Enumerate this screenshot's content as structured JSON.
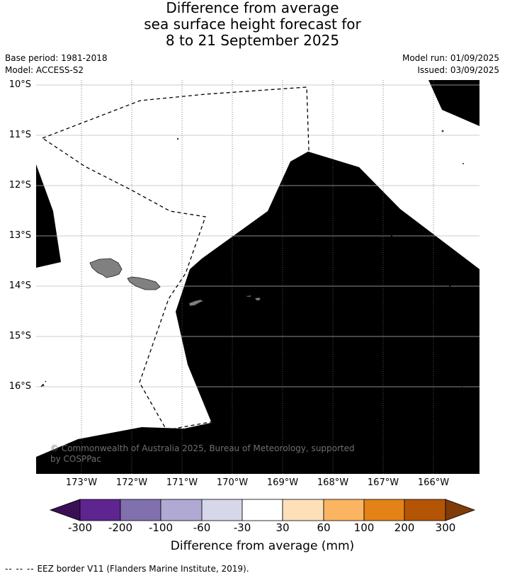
{
  "title": {
    "line1": "Difference from average",
    "line2": "sea surface height forecast for",
    "line3": "8 to 21 September 2025"
  },
  "meta": {
    "base_period": "Base period: 1981-2018",
    "model": "Model: ACCESS-S2",
    "model_run": "Model run: 01/09/2025",
    "issued": "Issued: 03/09/2025"
  },
  "map": {
    "lat_labels": [
      "10°S",
      "11°S",
      "12°S",
      "13°S",
      "14°S",
      "15°S",
      "16°S"
    ],
    "lon_labels": [
      "173°W",
      "172°W",
      "171°W",
      "170°W",
      "169°W",
      "168°W",
      "167°W",
      "166°W"
    ],
    "copyright": "© Commonwealth of Australia 2025, Bureau of Meteorology, supported by COSPPac",
    "colors": {
      "land": "#808080",
      "band_-100_-60": "#afa9d3",
      "band_-60_-30": "#d7d7ea",
      "eez_border": "#000000"
    }
  },
  "colorbar": {
    "title": "Difference from average (mm)",
    "ticks": [
      "-300",
      "-200",
      "-100",
      "-60",
      "-30",
      "30",
      "60",
      "100",
      "200",
      "300"
    ],
    "colors": [
      "#3b0f56",
      "#5e2490",
      "#8170ae",
      "#afa9d3",
      "#d7d7ea",
      "#ffffff",
      "#fde0b8",
      "#fbb562",
      "#e38216",
      "#b45506",
      "#7f3b08"
    ]
  },
  "footer": {
    "dashes": "--  --  --",
    "text": "EEZ border V11 (Flanders Marine Institute, 2019)."
  }
}
